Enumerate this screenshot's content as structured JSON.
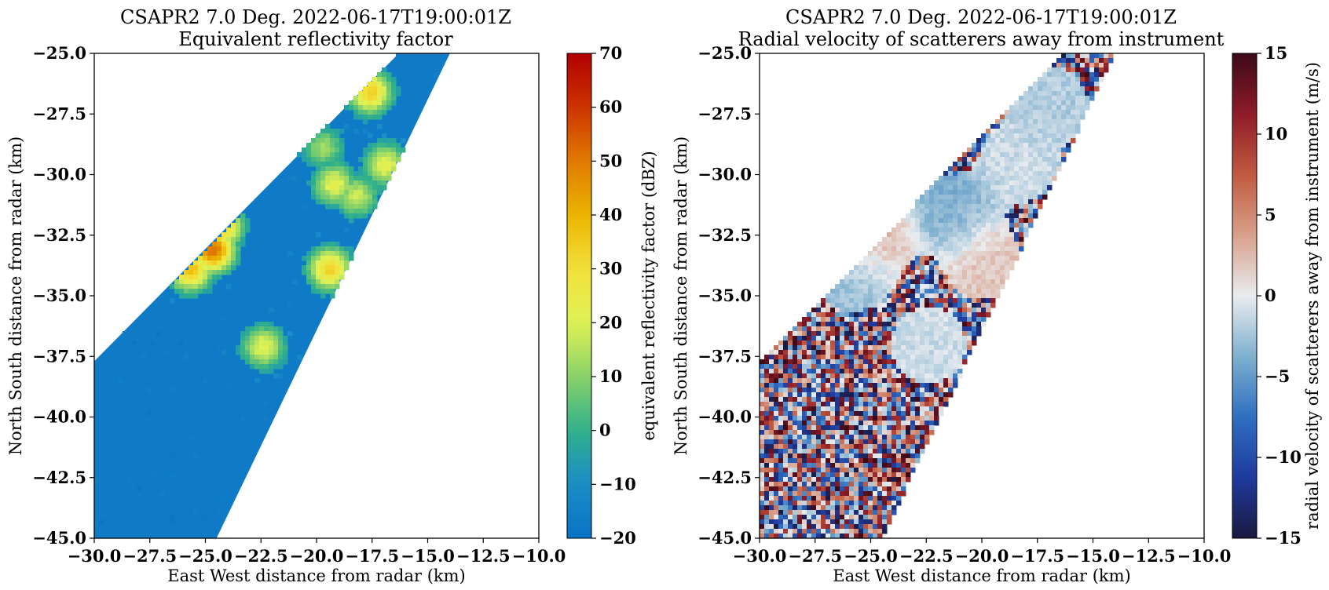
{
  "chart_data": [
    {
      "type": "heatmap",
      "title": "CSAPR2 7.0 Deg. 2022-06-17T19:00:01Z",
      "subtitle": "Equivalent reflectivity factor",
      "xlabel": "East West distance from radar (km)",
      "ylabel": "North South distance from radar (km)",
      "xlim": [
        -30.0,
        -10.0
      ],
      "ylim": [
        -45.0,
        -25.0
      ],
      "xticks": [
        "−30.0",
        "−27.5",
        "−25.0",
        "−22.5",
        "−20.0",
        "−17.5",
        "−15.0",
        "−12.5",
        "−10.0"
      ],
      "yticks": [
        "−25.0",
        "−27.5",
        "−30.0",
        "−32.5",
        "−35.0",
        "−37.5",
        "−40.0",
        "−42.5",
        "−45.0"
      ],
      "colorbar": {
        "label": "equivalent reflectivity factor (dBZ)",
        "range": [
          -20,
          70
        ],
        "ticks": [
          "70",
          "60",
          "50",
          "40",
          "30",
          "20",
          "10",
          "0",
          "−10",
          "−20"
        ],
        "colormap": [
          "#0a73c5",
          "#1a8dc8",
          "#30b08a",
          "#8ad26a",
          "#dff255",
          "#f2e03a",
          "#eab400",
          "#e07a00",
          "#cc3300",
          "#b00000"
        ]
      },
      "background_value": -17,
      "sector_edges": {
        "bottom_y": -45.0,
        "bottom_left_x": -30.0,
        "bottom_right_x": -24.5,
        "left_corner_y": -37.7,
        "top_y": -25.0,
        "top_left_x": -16.3,
        "top_right_x": -14.0
      },
      "features": [
        {
          "x": -24.8,
          "y": -33.0,
          "peak": 52
        },
        {
          "x": -25.8,
          "y": -33.8,
          "peak": 38
        },
        {
          "x": -24.4,
          "y": -32.0,
          "peak": 36
        },
        {
          "x": -17.7,
          "y": -26.5,
          "peak": 34
        },
        {
          "x": -19.3,
          "y": -30.3,
          "peak": 22
        },
        {
          "x": -18.3,
          "y": -30.8,
          "peak": 18
        },
        {
          "x": -17.0,
          "y": -29.5,
          "peak": 22
        },
        {
          "x": -19.5,
          "y": -33.8,
          "peak": 33
        },
        {
          "x": -22.5,
          "y": -37.0,
          "peak": 22
        },
        {
          "x": -19.8,
          "y": -28.8,
          "peak": 12
        }
      ]
    },
    {
      "type": "heatmap",
      "title": "CSAPR2 7.0 Deg. 2022-06-17T19:00:01Z",
      "subtitle": "Radial velocity of scatterers away from instrument",
      "xlabel": "East West distance from radar (km)",
      "ylabel": "North South distance from radar (km)",
      "xlim": [
        -30.0,
        -10.0
      ],
      "ylim": [
        -45.0,
        -25.0
      ],
      "xticks": [
        "−30.0",
        "−27.5",
        "−25.0",
        "−22.5",
        "−20.0",
        "−17.5",
        "−15.0",
        "−12.5",
        "−10.0"
      ],
      "yticks": [
        "−25.0",
        "−27.5",
        "−30.0",
        "−32.5",
        "−35.0",
        "−37.5",
        "−40.0",
        "−42.5",
        "−45.0"
      ],
      "colorbar": {
        "label": "radial velocity of scatterers away from instrument (m/s)",
        "range": [
          -15,
          15
        ],
        "ticks": [
          "15",
          "10",
          "5",
          "0",
          "−5",
          "−10",
          "−15"
        ],
        "colormap": [
          "#1a1a40",
          "#1f3a9e",
          "#2f6fc0",
          "#7fb0cf",
          "#e9ecef",
          "#d8a08a",
          "#c05a40",
          "#8f1b28",
          "#3b0a18"
        ]
      },
      "sector_edges": {
        "bottom_y": -45.0,
        "bottom_left_x": -30.0,
        "bottom_right_x": -24.5,
        "left_corner_y": -37.7,
        "top_y": -25.0,
        "top_left_x": -16.3,
        "top_right_x": -14.0
      },
      "smooth_regions": [
        {
          "x": -18.5,
          "y": -29.5,
          "v": -1
        },
        {
          "x": -17.0,
          "y": -27.0,
          "v": -2
        },
        {
          "x": -21.5,
          "y": -31.5,
          "v": -4
        },
        {
          "x": -25.0,
          "y": -32.5,
          "v": 3
        },
        {
          "x": -20.0,
          "y": -33.5,
          "v": 2
        },
        {
          "x": -26.0,
          "y": -34.0,
          "v": -3
        },
        {
          "x": -22.5,
          "y": -37.0,
          "v": -1
        }
      ]
    }
  ]
}
